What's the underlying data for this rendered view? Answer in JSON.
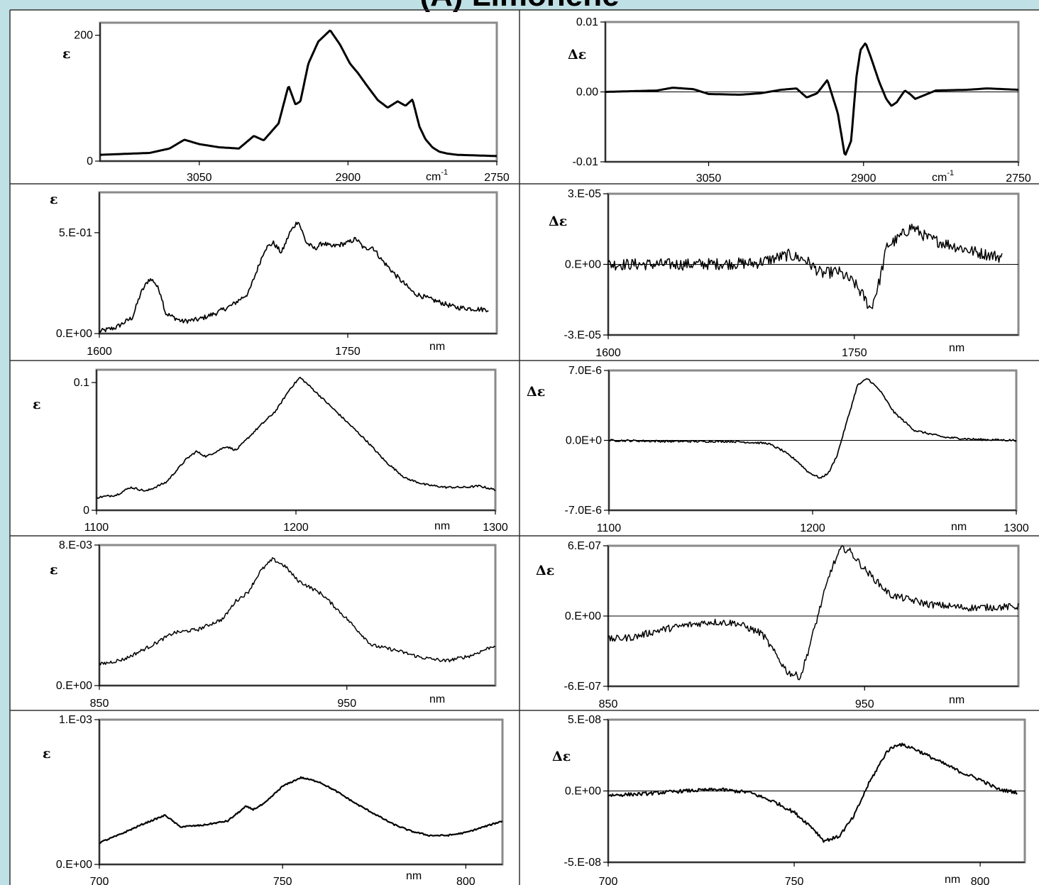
{
  "figure_title": "(A) Limonene",
  "chart_data": [
    {
      "id": "abs-ir",
      "type": "line",
      "ylabel": "ε",
      "xunit": "cm",
      "xunit_sup": "-1",
      "reversed": true,
      "xlim": [
        3150,
        2750
      ],
      "ylim": [
        0,
        220
      ],
      "yticks": [
        {
          "v": 0,
          "label": "0"
        },
        {
          "v": 200,
          "label": "200"
        }
      ],
      "xticks": [
        {
          "v": 3050,
          "label": "3050"
        },
        {
          "v": 2900,
          "label": "2900"
        },
        {
          "v": 2750,
          "label": "2750"
        }
      ],
      "noise": 0,
      "lw": 3,
      "grid": false,
      "series": [
        {
          "x": [
            3150,
            3100,
            3080,
            3065,
            3050,
            3030,
            3010,
            2995,
            2985,
            2970,
            2960,
            2953,
            2948,
            2940,
            2930,
            2918,
            2908,
            2898,
            2890,
            2880,
            2870,
            2860,
            2850,
            2842,
            2835,
            2828,
            2822,
            2815,
            2808,
            2800,
            2790,
            2770,
            2750
          ],
          "y": [
            10,
            13,
            20,
            34,
            27,
            22,
            20,
            40,
            33,
            60,
            120,
            90,
            95,
            155,
            190,
            208,
            185,
            155,
            140,
            118,
            97,
            85,
            95,
            88,
            98,
            55,
            35,
            22,
            15,
            12,
            10,
            9,
            8
          ]
        }
      ]
    },
    {
      "id": "cd-ir",
      "type": "line",
      "ylabel": "Δε",
      "xunit": "cm",
      "xunit_sup": "-1",
      "reversed": true,
      "xlim": [
        3150,
        2750
      ],
      "ylim": [
        -0.01,
        0.01
      ],
      "yticks": [
        {
          "v": -0.01,
          "label": "-0.01"
        },
        {
          "v": 0,
          "label": "0.00"
        },
        {
          "v": 0.01,
          "label": "0.01"
        }
      ],
      "xticks": [
        {
          "v": 3050,
          "label": "3050"
        },
        {
          "v": 2900,
          "label": "2900"
        },
        {
          "v": 2750,
          "label": "2750"
        }
      ],
      "noise": 0,
      "lw": 3,
      "grid": true,
      "series": [
        {
          "x": [
            3150,
            3100,
            3085,
            3065,
            3050,
            3020,
            3000,
            2980,
            2965,
            2955,
            2945,
            2935,
            2925,
            2918,
            2912,
            2907,
            2903,
            2898,
            2893,
            2885,
            2878,
            2873,
            2868,
            2860,
            2855,
            2850,
            2840,
            2830,
            2800,
            2780,
            2750
          ],
          "y": [
            0,
            0.0002,
            0.0006,
            0.0004,
            -0.0003,
            -0.0004,
            -0.0002,
            0.0003,
            0.0005,
            -0.0008,
            -0.0002,
            0.0017,
            -0.003,
            -0.0092,
            -0.007,
            0.002,
            0.006,
            0.007,
            0.005,
            0.0015,
            -0.001,
            -0.002,
            -0.0015,
            0.0002,
            -0.0003,
            -0.001,
            -0.0004,
            0.0002,
            0.0003,
            0.0005,
            0.0003
          ]
        }
      ]
    },
    {
      "id": "abs-1600",
      "type": "line",
      "ylabel": "ε",
      "xunit": "nm",
      "reversed": false,
      "xlim": [
        1600,
        1840
      ],
      "ylim": [
        0,
        0.7
      ],
      "yticks": [
        {
          "v": 0,
          "label": "0.E+00"
        },
        {
          "v": 0.5,
          "label": "5.E-01"
        }
      ],
      "xticks": [
        {
          "v": 1600,
          "label": "1600"
        },
        {
          "v": 1750,
          "label": "1750"
        }
      ],
      "noise": 0.012,
      "lw": 1.7,
      "grid": false,
      "series": [
        {
          "x": [
            1600,
            1610,
            1620,
            1625,
            1630,
            1633,
            1637,
            1640,
            1650,
            1660,
            1670,
            1680,
            1690,
            1700,
            1705,
            1710,
            1715,
            1720,
            1725,
            1730,
            1735,
            1740,
            1745,
            1750,
            1755,
            1760,
            1765,
            1770,
            1780,
            1790,
            1800,
            1815,
            1830,
            1835
          ],
          "y": [
            0.01,
            0.03,
            0.08,
            0.2,
            0.27,
            0.26,
            0.2,
            0.1,
            0.06,
            0.07,
            0.1,
            0.14,
            0.2,
            0.42,
            0.45,
            0.4,
            0.5,
            0.56,
            0.45,
            0.42,
            0.45,
            0.43,
            0.44,
            0.45,
            0.47,
            0.42,
            0.43,
            0.37,
            0.28,
            0.2,
            0.17,
            0.13,
            0.12,
            0.12
          ]
        }
      ]
    },
    {
      "id": "cd-1600",
      "type": "line",
      "ylabel": "Δε",
      "xunit": "nm",
      "reversed": false,
      "xlim": [
        1600,
        1850
      ],
      "ylim": [
        -3e-05,
        3e-05
      ],
      "yticks": [
        {
          "v": -3e-05,
          "label": "-3.E-05"
        },
        {
          "v": 0,
          "label": "0.E+00"
        },
        {
          "v": 3e-05,
          "label": "3.E-05"
        }
      ],
      "xticks": [
        {
          "v": 1600,
          "label": "1600"
        },
        {
          "v": 1750,
          "label": "1750"
        }
      ],
      "noise": 2.5e-06,
      "lw": 1.5,
      "grid": true,
      "series": [
        {
          "x": [
            1600,
            1650,
            1690,
            1710,
            1720,
            1730,
            1740,
            1750,
            1755,
            1760,
            1765,
            1770,
            1775,
            1785,
            1795,
            1810,
            1825,
            1840
          ],
          "y": [
            0,
            0,
            5e-07,
            4e-06,
            2e-06,
            -4e-06,
            -3e-06,
            -8e-06,
            -1.3e-05,
            -1.9e-05,
            -8e-06,
            8e-06,
            1e-05,
            1.6e-05,
            1.1e-05,
            8e-06,
            5e-06,
            3e-06
          ]
        }
      ]
    },
    {
      "id": "abs-1100",
      "type": "line",
      "ylabel": "ε",
      "xunit": "nm",
      "reversed": false,
      "xlim": [
        1100,
        1300
      ],
      "ylim": [
        0,
        0.11
      ],
      "yticks": [
        {
          "v": 0,
          "label": "0"
        },
        {
          "v": 0.1,
          "label": "0.1"
        }
      ],
      "xticks": [
        {
          "v": 1100,
          "label": "1100"
        },
        {
          "v": 1200,
          "label": "1200"
        },
        {
          "v": 1300,
          "label": "1300"
        }
      ],
      "noise": 0.0008,
      "lw": 1.7,
      "grid": false,
      "series": [
        {
          "x": [
            1100,
            1110,
            1117,
            1125,
            1135,
            1145,
            1150,
            1155,
            1160,
            1165,
            1170,
            1175,
            1180,
            1190,
            1197,
            1202,
            1207,
            1215,
            1225,
            1235,
            1245,
            1255,
            1265,
            1275,
            1285,
            1292,
            1300
          ],
          "y": [
            0.01,
            0.012,
            0.018,
            0.015,
            0.022,
            0.04,
            0.046,
            0.042,
            0.046,
            0.05,
            0.047,
            0.055,
            0.063,
            0.078,
            0.095,
            0.104,
            0.097,
            0.085,
            0.07,
            0.055,
            0.038,
            0.025,
            0.02,
            0.018,
            0.018,
            0.019,
            0.016
          ]
        }
      ]
    },
    {
      "id": "cd-1100",
      "type": "line",
      "ylabel": "Δε",
      "xunit": "nm",
      "reversed": false,
      "xlim": [
        1100,
        1300
      ],
      "ylim": [
        -7e-06,
        7e-06
      ],
      "yticks": [
        {
          "v": -7e-06,
          "label": "-7.0E-6"
        },
        {
          "v": 0,
          "label": "0.0E+0"
        },
        {
          "v": 7e-06,
          "label": "7.0E-6"
        }
      ],
      "xticks": [
        {
          "v": 1100,
          "label": "1100"
        },
        {
          "v": 1200,
          "label": "1200"
        },
        {
          "v": 1300,
          "label": "1300"
        }
      ],
      "noise": 1e-07,
      "lw": 1.7,
      "grid": true,
      "series": [
        {
          "x": [
            1100,
            1130,
            1160,
            1178,
            1185,
            1192,
            1198,
            1204,
            1208,
            1212,
            1217,
            1222,
            1227,
            1233,
            1240,
            1250,
            1265,
            1280,
            1300
          ],
          "y": [
            0,
            -1e-07,
            -1e-07,
            -3e-07,
            -1e-06,
            -2e-06,
            -3.2e-06,
            -3.8e-06,
            -3.2e-06,
            -1.5e-06,
            2e-06,
            5.5e-06,
            6.2e-06,
            5e-06,
            2.8e-06,
            1e-06,
            3e-07,
            1e-07,
            0
          ]
        }
      ]
    },
    {
      "id": "abs-850",
      "type": "line",
      "ylabel": "ε",
      "xunit": "nm",
      "reversed": false,
      "xlim": [
        850,
        1010
      ],
      "ylim": [
        0,
        0.008
      ],
      "yticks": [
        {
          "v": 0,
          "label": "0.E+00"
        },
        {
          "v": 0.008,
          "label": "8.E-03"
        }
      ],
      "xticks": [
        {
          "v": 850,
          "label": "850"
        },
        {
          "v": 950,
          "label": "950"
        }
      ],
      "noise": 0.0001,
      "lw": 1.5,
      "grid": false,
      "series": [
        {
          "x": [
            850,
            860,
            870,
            880,
            890,
            900,
            905,
            910,
            915,
            920,
            925,
            930,
            940,
            950,
            960,
            970,
            980,
            990,
            1000,
            1010
          ],
          "y": [
            0.0012,
            0.0015,
            0.0022,
            0.003,
            0.0032,
            0.0038,
            0.0048,
            0.0053,
            0.0065,
            0.0072,
            0.0068,
            0.006,
            0.0052,
            0.0038,
            0.0023,
            0.002,
            0.0016,
            0.0014,
            0.0017,
            0.0023
          ]
        }
      ]
    },
    {
      "id": "cd-850",
      "type": "line",
      "ylabel": "Δε",
      "xunit": "nm",
      "reversed": false,
      "xlim": [
        850,
        1010
      ],
      "ylim": [
        -6e-07,
        6e-07
      ],
      "yticks": [
        {
          "v": -6e-07,
          "label": "-6.E-07"
        },
        {
          "v": 0,
          "label": "0.E+00"
        },
        {
          "v": 6e-07,
          "label": "6.E-07"
        }
      ],
      "xticks": [
        {
          "v": 850,
          "label": "850"
        },
        {
          "v": 950,
          "label": "950"
        }
      ],
      "noise": 3e-08,
      "lw": 1.5,
      "grid": true,
      "series": [
        {
          "x": [
            850,
            860,
            870,
            880,
            890,
            900,
            910,
            916,
            920,
            925,
            928,
            933,
            937,
            941,
            944,
            950,
            960,
            975,
            990,
            1010
          ],
          "y": [
            -2e-07,
            -1.8e-07,
            -1.2e-07,
            -8e-08,
            -5e-08,
            -6e-08,
            -1.5e-07,
            -3.5e-07,
            -4.8e-07,
            -5.2e-07,
            -3e-07,
            1e-07,
            4e-07,
            5.8e-07,
            5.6e-07,
            4e-07,
            1.8e-07,
            1e-07,
            7e-08,
            8e-08
          ]
        }
      ]
    },
    {
      "id": "abs-700",
      "type": "line",
      "ylabel": "ε",
      "xunit": "nm",
      "reversed": false,
      "xlim": [
        700,
        810
      ],
      "ylim": [
        0,
        0.001
      ],
      "yticks": [
        {
          "v": 0,
          "label": "0.E+00"
        },
        {
          "v": 0.001,
          "label": "1.E-03"
        }
      ],
      "xticks": [
        {
          "v": 700,
          "label": "700"
        },
        {
          "v": 750,
          "label": "750"
        },
        {
          "v": 800,
          "label": "800"
        }
      ],
      "noise": 5e-06,
      "lw": 2.2,
      "grid": false,
      "series": [
        {
          "x": [
            700,
            705,
            712,
            718,
            722,
            728,
            735,
            740,
            742,
            745,
            750,
            755,
            760,
            765,
            770,
            775,
            780,
            785,
            790,
            795,
            800,
            810
          ],
          "y": [
            0.00015,
            0.0002,
            0.00028,
            0.00034,
            0.00026,
            0.00027,
            0.0003,
            0.0004,
            0.00038,
            0.00042,
            0.00054,
            0.0006,
            0.00057,
            0.0005,
            0.00042,
            0.00035,
            0.00028,
            0.00023,
            0.0002,
            0.0002,
            0.00022,
            0.0003
          ]
        }
      ]
    },
    {
      "id": "cd-700",
      "type": "line",
      "ylabel": "Δε",
      "xunit": "nm",
      "reversed": false,
      "xlim": [
        700,
        812
      ],
      "ylim": [
        -5e-08,
        5e-08
      ],
      "yticks": [
        {
          "v": -5e-08,
          "label": "-5.E-08"
        },
        {
          "v": 0,
          "label": "0.E+00"
        },
        {
          "v": 5e-08,
          "label": "5.E-08"
        }
      ],
      "xticks": [
        {
          "v": 700,
          "label": "700"
        },
        {
          "v": 750,
          "label": "750"
        },
        {
          "v": 800,
          "label": "800"
        }
      ],
      "noise": 1.2e-09,
      "lw": 2,
      "grid": true,
      "series": [
        {
          "x": [
            700,
            710,
            720,
            730,
            738,
            745,
            750,
            755,
            758,
            762,
            766,
            770,
            775,
            778,
            782,
            788,
            795,
            800,
            805,
            810
          ],
          "y": [
            -3e-09,
            -2e-09,
            0,
            1e-09,
            -1e-09,
            -8e-09,
            -1.5e-08,
            -2.6e-08,
            -3.5e-08,
            -3.2e-08,
            -1.8e-08,
            5e-09,
            2.8e-08,
            3.3e-08,
            3e-08,
            2.2e-08,
            1.3e-08,
            8e-09,
            1e-09,
            -1e-09
          ]
        }
      ]
    }
  ]
}
